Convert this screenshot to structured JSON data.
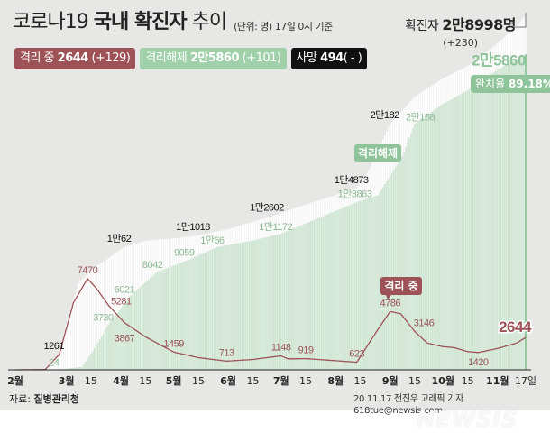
{
  "title": {
    "prefix": "코로나19",
    "bold": "국내 확진자",
    "suffix": "추이"
  },
  "unit_note": "(단위: 명) 17일 0시 기준",
  "legend": {
    "isolation": {
      "label": "격리 중",
      "value": "2644",
      "delta": "(+129)",
      "color": "#9c5257"
    },
    "released": {
      "label": "격리해제",
      "value": "2만5860",
      "delta": "(+101)",
      "color": "#9fd0a9"
    },
    "deaths": {
      "label": "사망",
      "value": "494",
      "delta": "( - )",
      "color": "#111111"
    }
  },
  "total": {
    "label": "확진자",
    "value": "2만8998명",
    "delta": "(+230)"
  },
  "recovery_rate": {
    "label": "완치율",
    "value": "89.18%"
  },
  "tags": {
    "released": "격리해제",
    "isolation": "격리 중"
  },
  "source": {
    "label": "자료:",
    "value": "질병관리청"
  },
  "credit": "20.11.17 전진우 고래픽 기자 618tue@newsis.com",
  "watermark": "NEWSIS",
  "chart_data": {
    "type": "area",
    "x_start": "02-01",
    "x_end": "11-17",
    "x_ticks": [
      {
        "date": "02-01",
        "label": "2월",
        "major": true
      },
      {
        "date": "03-01",
        "label": "3월",
        "major": true
      },
      {
        "date": "03-15",
        "label": "15",
        "major": false
      },
      {
        "date": "04-01",
        "label": "4월",
        "major": true
      },
      {
        "date": "04-15",
        "label": "15",
        "major": false
      },
      {
        "date": "05-01",
        "label": "5월",
        "major": true
      },
      {
        "date": "05-15",
        "label": "15",
        "major": false
      },
      {
        "date": "06-01",
        "label": "6월",
        "major": true
      },
      {
        "date": "06-15",
        "label": "15",
        "major": false
      },
      {
        "date": "07-01",
        "label": "7월",
        "major": true
      },
      {
        "date": "07-15",
        "label": "15",
        "major": false
      },
      {
        "date": "08-01",
        "label": "8월",
        "major": true
      },
      {
        "date": "08-15",
        "label": "15",
        "major": false
      },
      {
        "date": "09-01",
        "label": "9월",
        "major": true
      },
      {
        "date": "09-15",
        "label": "15",
        "major": false
      },
      {
        "date": "10-01",
        "label": "10월",
        "major": true
      },
      {
        "date": "10-15",
        "label": "15",
        "major": false
      },
      {
        "date": "11-01",
        "label": "11월",
        "major": true
      },
      {
        "date": "11-17",
        "label": "17일",
        "major": false
      }
    ],
    "ylim": [
      0,
      30000
    ],
    "series": [
      {
        "name": "확진자",
        "color": "#ffffff",
        "kind": "bars",
        "points": [
          [
            "02-01",
            12
          ],
          [
            "02-18",
            31
          ],
          [
            "02-26",
            1261
          ],
          [
            "03-01",
            3736
          ],
          [
            "03-08",
            7134
          ],
          [
            "03-15",
            8162
          ],
          [
            "04-03",
            10062
          ],
          [
            "04-15",
            10591
          ],
          [
            "05-01",
            10774
          ],
          [
            "05-15",
            11018
          ],
          [
            "06-01",
            11541
          ],
          [
            "06-26",
            12602
          ],
          [
            "07-15",
            13551
          ],
          [
            "08-13",
            14873
          ],
          [
            "08-20",
            16346
          ],
          [
            "09-01",
            20182
          ],
          [
            "09-15",
            22391
          ],
          [
            "10-01",
            23889
          ],
          [
            "10-15",
            24889
          ],
          [
            "11-01",
            26732
          ],
          [
            "11-17",
            28998
          ]
        ],
        "labels": [
          [
            "02-26",
            "1261"
          ],
          [
            "04-03",
            "1만62"
          ],
          [
            "05-15",
            "1만1018"
          ],
          [
            "06-26",
            "1만2602"
          ],
          [
            "08-13",
            "1만4873"
          ],
          [
            "09-01",
            "2만182"
          ]
        ]
      },
      {
        "name": "격리해제",
        "color": "#cde6d2",
        "kind": "bars",
        "points": [
          [
            "02-01",
            0
          ],
          [
            "02-26",
            24
          ],
          [
            "03-10",
            250
          ],
          [
            "03-18",
            2000
          ],
          [
            "03-25",
            3730
          ],
          [
            "04-06",
            6021
          ],
          [
            "04-22",
            8042
          ],
          [
            "05-10",
            9059
          ],
          [
            "05-26",
            10066
          ],
          [
            "06-15",
            10600
          ],
          [
            "07-01",
            11172
          ],
          [
            "07-20",
            12300
          ],
          [
            "08-15",
            13863
          ],
          [
            "08-25",
            14300
          ],
          [
            "09-08",
            17500
          ],
          [
            "09-15",
            20158
          ],
          [
            "10-01",
            21800
          ],
          [
            "10-15",
            22900
          ],
          [
            "11-01",
            24600
          ],
          [
            "11-17",
            25860
          ]
        ],
        "labels": [
          [
            "02-26",
            "24"
          ],
          [
            "03-25",
            "3730"
          ],
          [
            "04-06",
            "6021"
          ],
          [
            "04-22",
            "8042"
          ],
          [
            "05-10",
            "9059"
          ],
          [
            "05-26",
            "1만66"
          ],
          [
            "07-01",
            "1만1172"
          ],
          [
            "08-15",
            "1만3863"
          ],
          [
            "09-15",
            "2만158"
          ],
          [
            "11-17",
            "2만5860"
          ]
        ]
      },
      {
        "name": "격리 중",
        "color": "#9c5257",
        "kind": "line",
        "points": [
          [
            "02-01",
            0
          ],
          [
            "02-18",
            20
          ],
          [
            "02-26",
            1261
          ],
          [
            "03-05",
            5500
          ],
          [
            "03-13",
            7470
          ],
          [
            "03-18",
            6700
          ],
          [
            "03-25",
            5281
          ],
          [
            "04-03",
            3867
          ],
          [
            "04-15",
            2700
          ],
          [
            "05-01",
            1459
          ],
          [
            "05-15",
            1000
          ],
          [
            "05-31",
            713
          ],
          [
            "06-15",
            850
          ],
          [
            "07-01",
            1148
          ],
          [
            "07-05",
            900
          ],
          [
            "07-15",
            919
          ],
          [
            "08-01",
            750
          ],
          [
            "08-13",
            623
          ],
          [
            "08-25",
            3300
          ],
          [
            "09-01",
            4786
          ],
          [
            "09-07",
            4600
          ],
          [
            "09-15",
            3146
          ],
          [
            "09-22",
            2200
          ],
          [
            "10-01",
            1900
          ],
          [
            "10-07",
            1830
          ],
          [
            "10-15",
            1500
          ],
          [
            "10-21",
            1420
          ],
          [
            "11-01",
            1750
          ],
          [
            "11-12",
            2200
          ],
          [
            "11-17",
            2644
          ]
        ],
        "labels": [
          [
            "03-13",
            "7470"
          ],
          [
            "03-25",
            "5281"
          ],
          [
            "04-03",
            "3867"
          ],
          [
            "05-01",
            "1459"
          ],
          [
            "05-31",
            "713"
          ],
          [
            "07-01",
            "1148"
          ],
          [
            "07-15",
            "919"
          ],
          [
            "08-13",
            "623"
          ],
          [
            "09-01",
            "4786"
          ],
          [
            "09-15",
            "3146"
          ],
          [
            "10-21",
            "1420"
          ],
          [
            "11-17",
            "2644"
          ]
        ]
      }
    ]
  }
}
